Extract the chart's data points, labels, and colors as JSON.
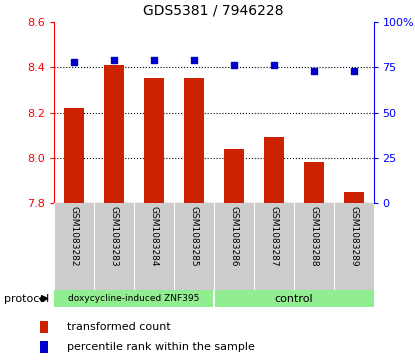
{
  "title": "GDS5381 / 7946228",
  "categories": [
    "GSM1083282",
    "GSM1083283",
    "GSM1083284",
    "GSM1083285",
    "GSM1083286",
    "GSM1083287",
    "GSM1083288",
    "GSM1083289"
  ],
  "bar_values": [
    8.22,
    8.41,
    8.35,
    8.35,
    8.04,
    8.09,
    7.98,
    7.85
  ],
  "dot_values": [
    78,
    79,
    79,
    79,
    76,
    76,
    73,
    73
  ],
  "ylim_left": [
    7.8,
    8.6
  ],
  "ylim_right": [
    0,
    100
  ],
  "yticks_left": [
    7.8,
    8.0,
    8.2,
    8.4,
    8.6
  ],
  "yticks_right": [
    0,
    25,
    50,
    75,
    100
  ],
  "grid_lines": [
    8.0,
    8.2,
    8.4
  ],
  "bar_color": "#cc2200",
  "dot_color": "#0000cc",
  "group1_label": "doxycycline-induced ZNF395",
  "group2_label": "control",
  "group1_count": 4,
  "group2_count": 4,
  "protocol_label": "protocol",
  "legend_bar_label": "transformed count",
  "legend_dot_label": "percentile rank within the sample",
  "background_color": "#ffffff",
  "label_area_color": "#cccccc",
  "group_bar_color": "#90ee90",
  "bar_width": 0.5
}
